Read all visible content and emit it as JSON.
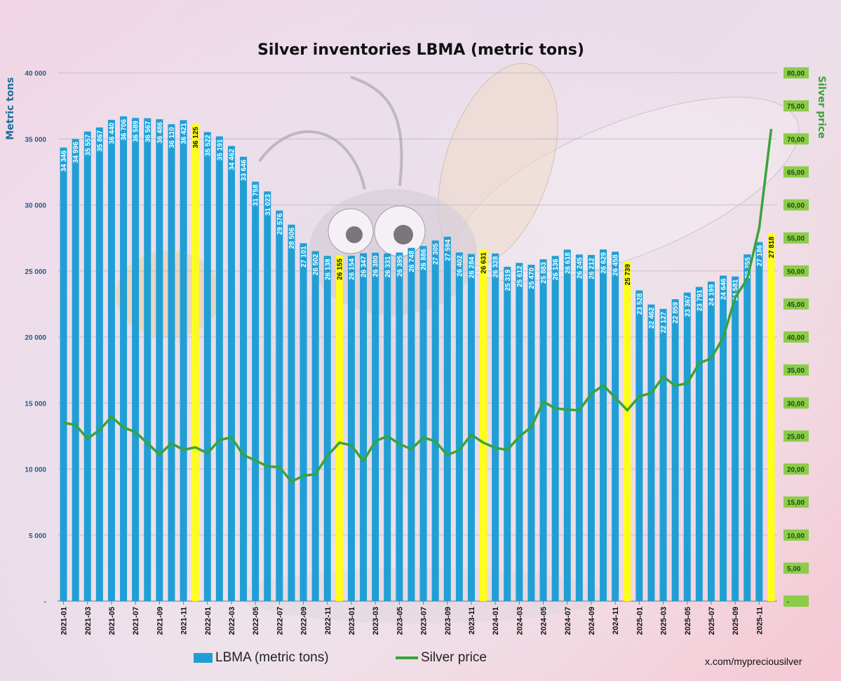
{
  "chart_data": {
    "type": "bar",
    "title": "Silver inventories LBMA (metric tons)",
    "ylabel": "Metric tons",
    "y2label": "Silver price",
    "ylim": [
      0,
      40000
    ],
    "y2lim": [
      0,
      80
    ],
    "yticks": [
      "-",
      "5 000",
      "10 000",
      "15 000",
      "20 000",
      "25 000",
      "30 000",
      "35 000",
      "40 000"
    ],
    "y2ticks": [
      "-",
      "5,00",
      "10,00",
      "15,00",
      "20,00",
      "25,00",
      "30,00",
      "35,00",
      "40,00",
      "45,00",
      "50,00",
      "55,00",
      "60,00",
      "65,00",
      "70,00",
      "75,00",
      "80,00"
    ],
    "x": [
      "2021-01",
      "2021-02",
      "2021-03",
      "2021-04",
      "2021-05",
      "2021-06",
      "2021-07",
      "2021-08",
      "2021-09",
      "2021-10",
      "2021-11",
      "2021-12",
      "2022-01",
      "2022-02",
      "2022-03",
      "2022-04",
      "2022-05",
      "2022-06",
      "2022-07",
      "2022-08",
      "2022-09",
      "2022-10",
      "2022-11",
      "2022-12",
      "2023-01",
      "2023-02",
      "2023-03",
      "2023-04",
      "2023-05",
      "2023-06",
      "2023-07",
      "2023-08",
      "2023-09",
      "2023-10",
      "2023-11",
      "2023-12",
      "2024-01",
      "2024-02",
      "2024-03",
      "2024-04",
      "2024-05",
      "2024-06",
      "2024-07",
      "2024-08",
      "2024-09",
      "2024-10",
      "2024-11",
      "2024-12",
      "2025-01",
      "2025-02",
      "2025-03",
      "2025-04",
      "2025-05",
      "2025-06",
      "2025-07",
      "2025-08",
      "2025-09",
      "2025-10",
      "2025-11",
      "2025-12"
    ],
    "xtick_labels": [
      "2021-01",
      "2021-03",
      "2021-05",
      "2021-07",
      "2021-09",
      "2021-11",
      "2022-01",
      "2022-03",
      "2022-05",
      "2022-07",
      "2022-09",
      "2022-11",
      "2023-01",
      "2023-03",
      "2023-05",
      "2023-07",
      "2023-09",
      "2023-11",
      "2024-01",
      "2024-03",
      "2024-05",
      "2024-07",
      "2024-09",
      "2024-11",
      "2025-01",
      "2025-03",
      "2025-05",
      "2025-07",
      "2025-09",
      "2025-11"
    ],
    "series": [
      {
        "name": "LBMA (metric tons)",
        "type": "bar",
        "color": "#1f9fd6",
        "highlight_color": "#ffff1a",
        "highlight_index": [
          11,
          23,
          35,
          47,
          59
        ],
        "values": [
          34346,
          34996,
          35557,
          35867,
          36440,
          36706,
          36589,
          36567,
          36486,
          36110,
          36421,
          36125,
          35522,
          35191,
          34462,
          33646,
          31758,
          31023,
          29576,
          28506,
          27101,
          26502,
          26138,
          26155,
          26154,
          26347,
          26380,
          26331,
          26395,
          26748,
          26886,
          27305,
          27594,
          26402,
          26284,
          26631,
          26328,
          25319,
          25612,
          25470,
          25883,
          26136,
          26618,
          26245,
          26212,
          26629,
          26458,
          25739,
          23528,
          22462,
          22127,
          22859,
          23367,
          23791,
          24199,
          24646,
          24581,
          26255,
          27186,
          27818
        ],
        "labels": [
          "34 346",
          "34 996",
          "35 557",
          "35 867",
          "36 440",
          "36 706",
          "36 589",
          "36 567",
          "36 486",
          "36 110",
          "36 421",
          "36 125",
          "35 522",
          "35 191",
          "34 462",
          "33 646",
          "31 758",
          "31 023",
          "29 576",
          "28 506",
          "27 101",
          "26 502",
          "26 138",
          "26 155",
          "26 154",
          "26 347",
          "26 380",
          "26 331",
          "26 395",
          "26 748",
          "26 886",
          "27 305",
          "27 594",
          "26 402",
          "26 284",
          "26 631",
          "26 328",
          "25 319",
          "25 612",
          "25 470",
          "25 883",
          "26 136",
          "26 618",
          "26 245",
          "26 212",
          "26 629",
          "26 458",
          "25 739",
          "23 528",
          "22 462",
          "22 127",
          "22 859",
          "23 367",
          "23 791",
          "24 199",
          "24 646",
          "24 581",
          "26 255",
          "27 186",
          "27 818"
        ]
      },
      {
        "name": "Silver price",
        "type": "line",
        "axis": "right",
        "color": "#3aa33a",
        "values": [
          27.0,
          26.7,
          24.6,
          25.9,
          27.9,
          26.3,
          25.6,
          23.9,
          22.2,
          23.9,
          22.9,
          23.3,
          22.4,
          24.4,
          24.8,
          22.1,
          21.3,
          20.4,
          20.3,
          18.1,
          19.0,
          19.2,
          22.0,
          24.0,
          23.6,
          21.2,
          24.2,
          25.0,
          23.8,
          23.0,
          24.8,
          24.2,
          22.1,
          22.9,
          25.2,
          24.0,
          23.2,
          22.9,
          24.9,
          26.4,
          30.2,
          29.2,
          29.0,
          28.9,
          31.4,
          32.7,
          30.8,
          28.9,
          31.0,
          31.5,
          34.0,
          32.6,
          33.0,
          36.0,
          36.8,
          39.9,
          46.0,
          48.8,
          56.5,
          71.5
        ]
      }
    ],
    "grid": true,
    "legend": "bottom-center"
  },
  "footer": {
    "credit": "x.com/mypreciousilver"
  }
}
